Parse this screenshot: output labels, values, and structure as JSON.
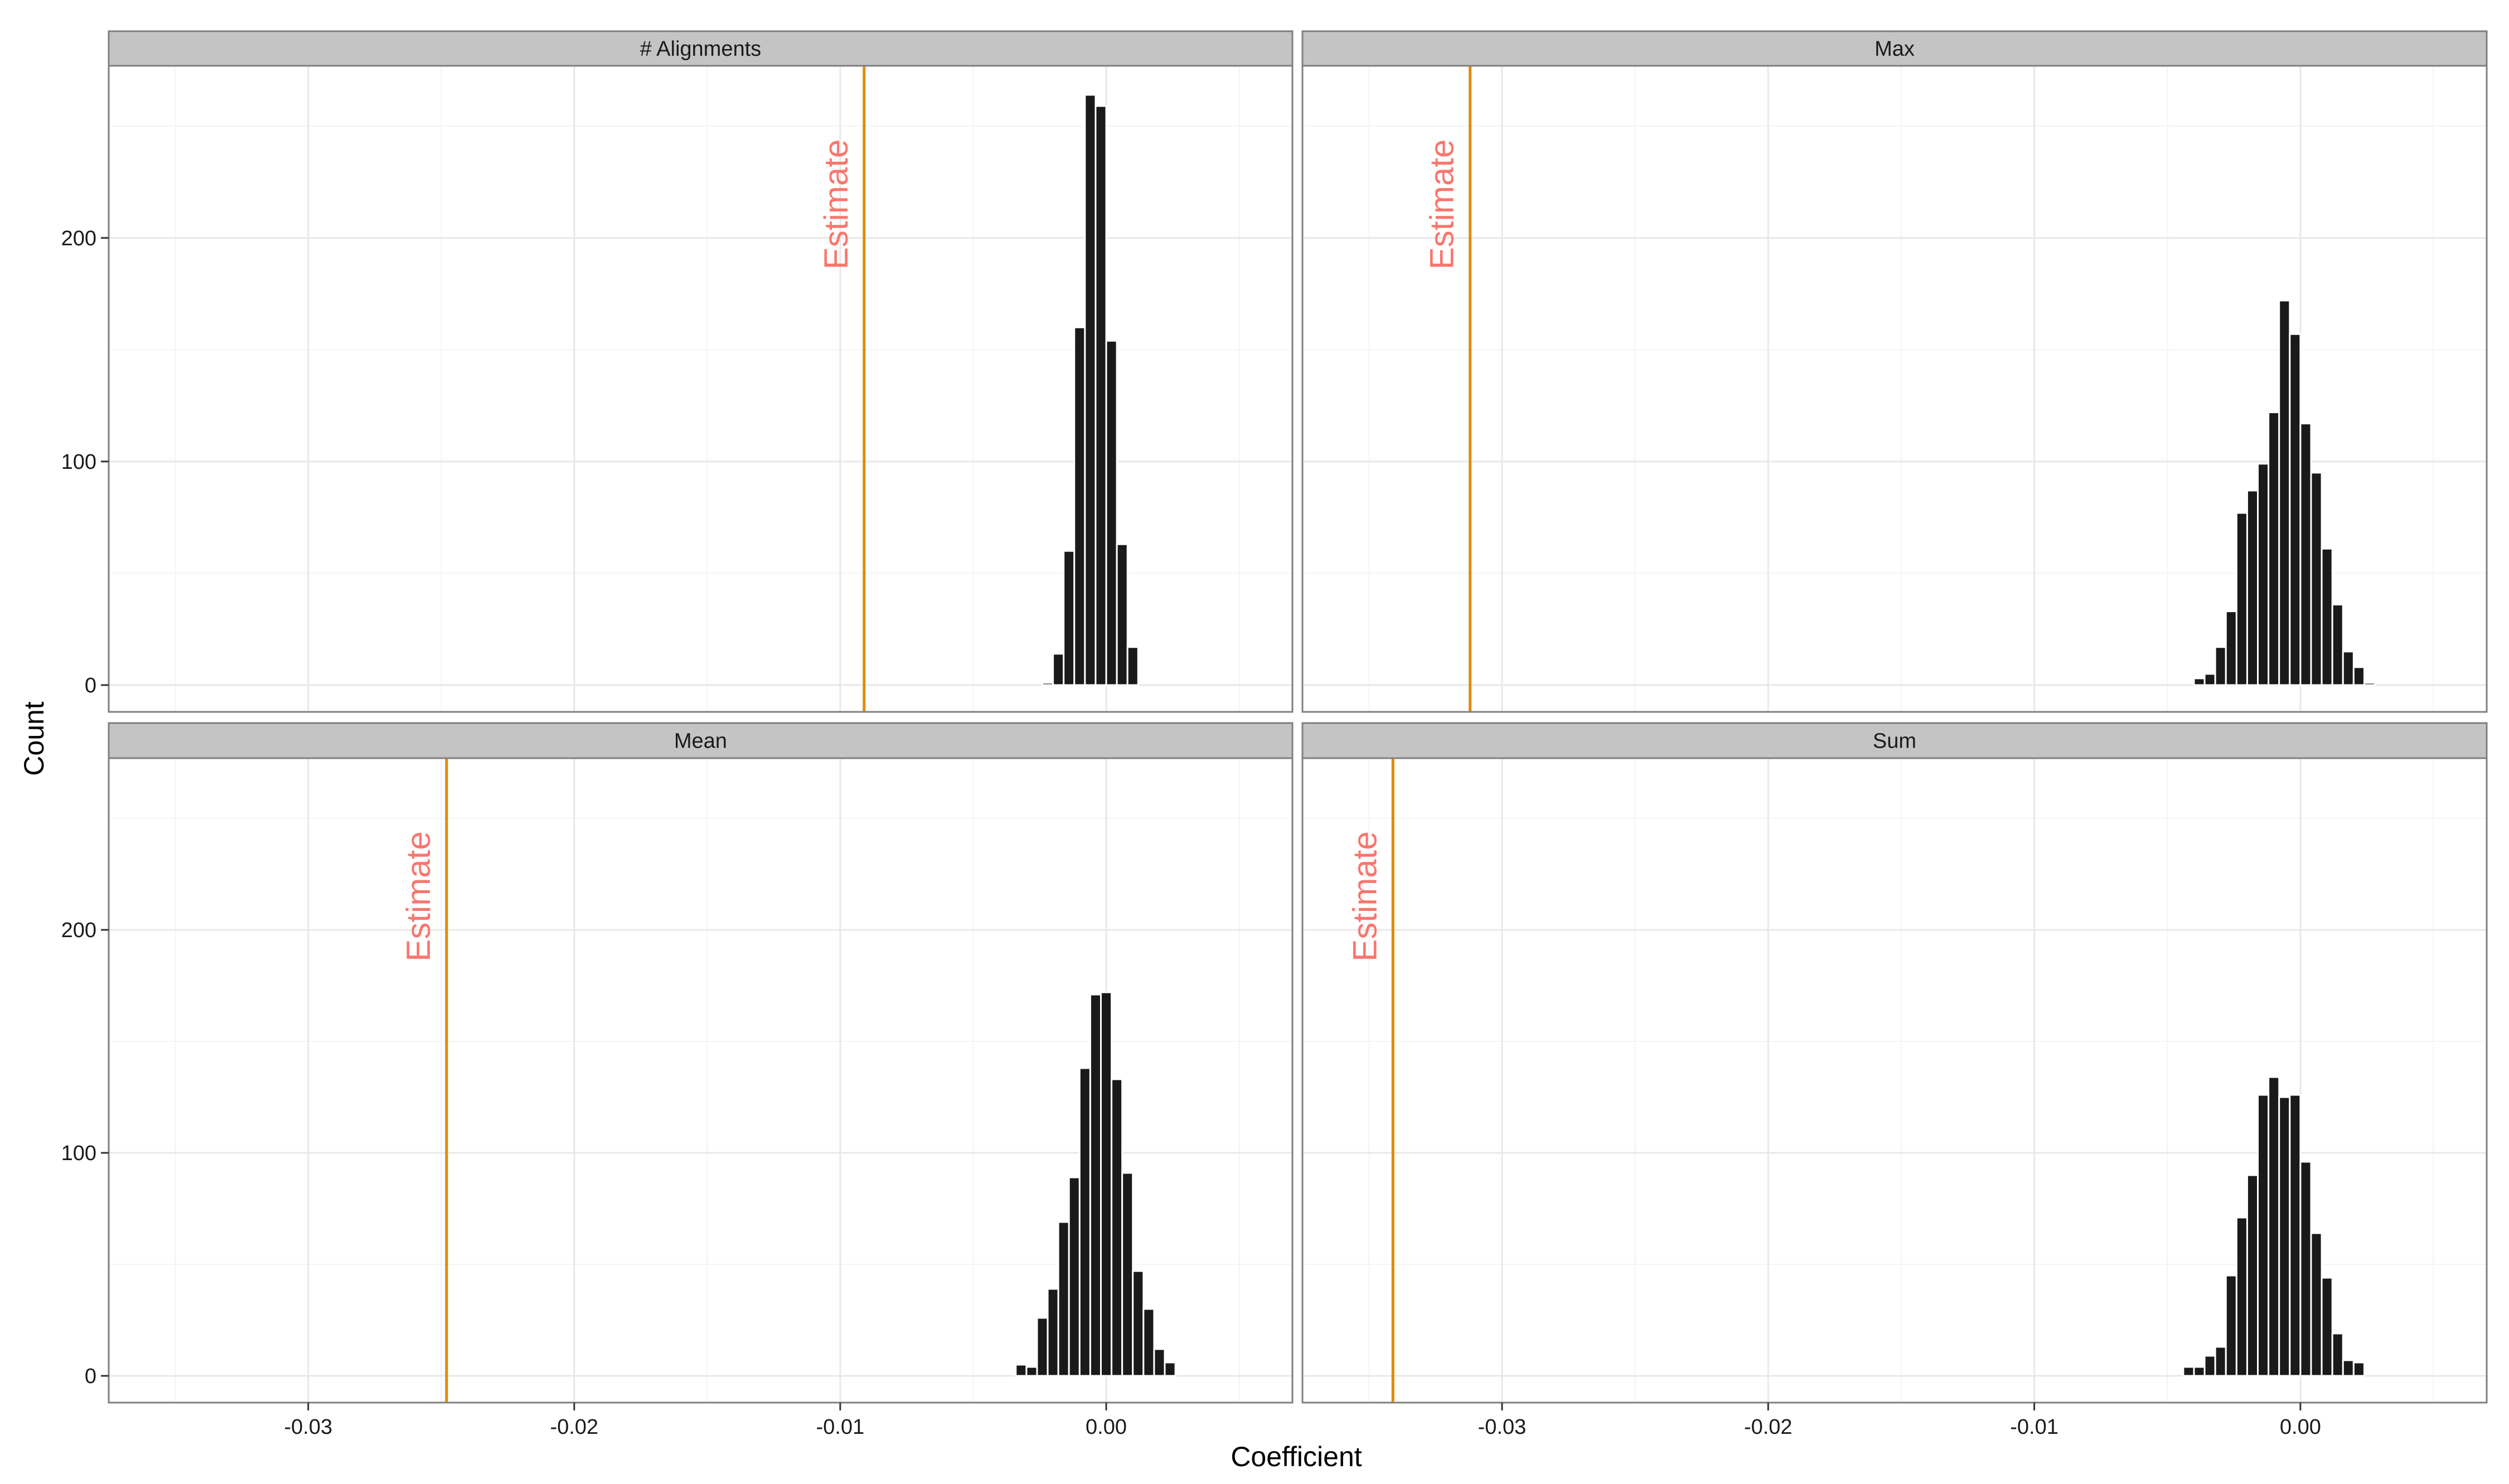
{
  "chart_data": {
    "type": "bar",
    "layout": "facet-grid-2x2",
    "xlabel": "Coefficient",
    "ylabel": "Count",
    "xlim": [
      -0.0375,
      0.007
    ],
    "ylim": [
      -12,
      277
    ],
    "x_ticks": [
      -0.03,
      -0.02,
      -0.01,
      0.0
    ],
    "x_tick_labels": [
      "-0.03",
      "-0.02",
      "-0.01",
      "0.00"
    ],
    "y_ticks": [
      0,
      100,
      200
    ],
    "y_tick_labels": [
      "0",
      "100",
      "200"
    ],
    "grid": true,
    "bin_width": 0.0004,
    "bar_color": "#1a1a1a",
    "estimate_line_color": "#e08b00",
    "estimate_label_color": "#f8766d",
    "strip_bg_color": "#c4c4c4",
    "panels": [
      {
        "name": "# Alignments",
        "estimate_x": -0.0091,
        "estimate_label": "Estimate",
        "bins": [
          {
            "x": -0.0022,
            "count": 1
          },
          {
            "x": -0.0018,
            "count": 14
          },
          {
            "x": -0.0014,
            "count": 60
          },
          {
            "x": -0.001,
            "count": 160
          },
          {
            "x": -0.0006,
            "count": 264
          },
          {
            "x": -0.0002,
            "count": 259
          },
          {
            "x": 0.0002,
            "count": 154
          },
          {
            "x": 0.0006,
            "count": 63
          },
          {
            "x": 0.001,
            "count": 17
          }
        ]
      },
      {
        "name": "Max",
        "estimate_x": -0.0312,
        "estimate_label": "Estimate",
        "bins": [
          {
            "x": -0.0038,
            "count": 3
          },
          {
            "x": -0.0034,
            "count": 5
          },
          {
            "x": -0.003,
            "count": 17
          },
          {
            "x": -0.0026,
            "count": 33
          },
          {
            "x": -0.0022,
            "count": 77
          },
          {
            "x": -0.0018,
            "count": 87
          },
          {
            "x": -0.0014,
            "count": 99
          },
          {
            "x": -0.001,
            "count": 122
          },
          {
            "x": -0.0006,
            "count": 172
          },
          {
            "x": -0.0002,
            "count": 157
          },
          {
            "x": 0.0002,
            "count": 117
          },
          {
            "x": 0.0006,
            "count": 95
          },
          {
            "x": 0.001,
            "count": 61
          },
          {
            "x": 0.0014,
            "count": 36
          },
          {
            "x": 0.0018,
            "count": 15
          },
          {
            "x": 0.0022,
            "count": 8
          },
          {
            "x": 0.0026,
            "count": 1
          }
        ]
      },
      {
        "name": "Mean",
        "estimate_x": -0.0248,
        "estimate_label": "Estimate",
        "bins": [
          {
            "x": -0.0032,
            "count": 5
          },
          {
            "x": -0.0028,
            "count": 4
          },
          {
            "x": -0.0024,
            "count": 26
          },
          {
            "x": -0.002,
            "count": 39
          },
          {
            "x": -0.0016,
            "count": 69
          },
          {
            "x": -0.0012,
            "count": 89
          },
          {
            "x": -0.0008,
            "count": 138
          },
          {
            "x": -0.0004,
            "count": 171
          },
          {
            "x": 0.0,
            "count": 172
          },
          {
            "x": 0.0004,
            "count": 133
          },
          {
            "x": 0.0008,
            "count": 91
          },
          {
            "x": 0.0012,
            "count": 47
          },
          {
            "x": 0.0016,
            "count": 30
          },
          {
            "x": 0.002,
            "count": 12
          },
          {
            "x": 0.0024,
            "count": 6
          }
        ]
      },
      {
        "name": "Sum",
        "estimate_x": -0.0341,
        "estimate_label": "Estimate",
        "bins": [
          {
            "x": -0.0042,
            "count": 4
          },
          {
            "x": -0.0038,
            "count": 4
          },
          {
            "x": -0.0034,
            "count": 9
          },
          {
            "x": -0.003,
            "count": 13
          },
          {
            "x": -0.0026,
            "count": 45
          },
          {
            "x": -0.0022,
            "count": 71
          },
          {
            "x": -0.0018,
            "count": 90
          },
          {
            "x": -0.0014,
            "count": 126
          },
          {
            "x": -0.001,
            "count": 134
          },
          {
            "x": -0.0006,
            "count": 125
          },
          {
            "x": -0.0002,
            "count": 126
          },
          {
            "x": 0.0002,
            "count": 96
          },
          {
            "x": 0.0006,
            "count": 64
          },
          {
            "x": 0.001,
            "count": 44
          },
          {
            "x": 0.0014,
            "count": 19
          },
          {
            "x": 0.0018,
            "count": 7
          },
          {
            "x": 0.0022,
            "count": 6
          }
        ]
      }
    ]
  }
}
